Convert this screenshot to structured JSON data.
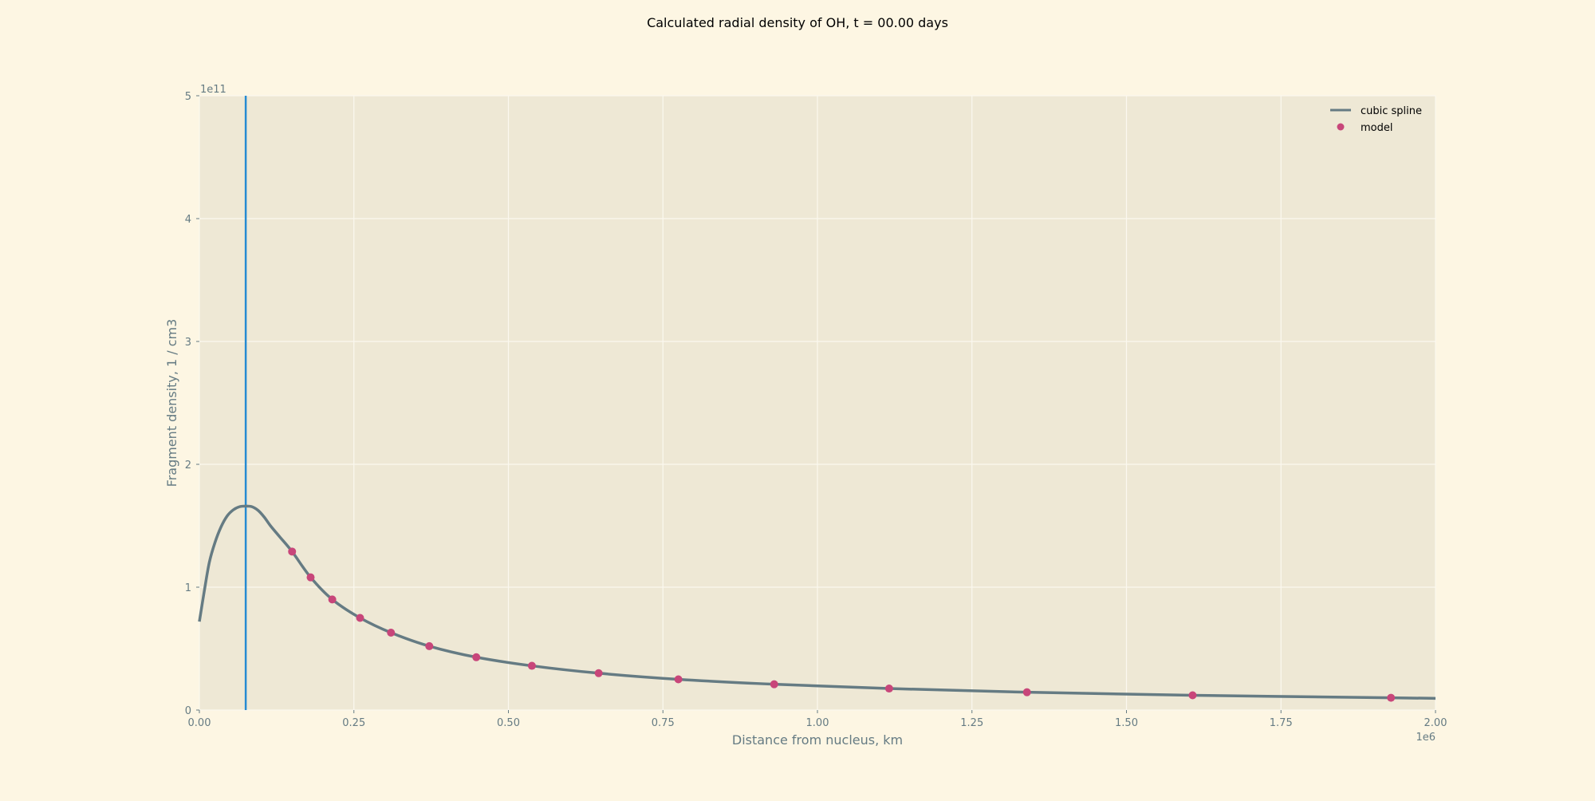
{
  "chart_data": {
    "type": "line",
    "title": "Calculated radial density of OH, t = 00.00 days",
    "xlabel": "Distance from nucleus, km",
    "ylabel": "Fragment density, 1 / cm3",
    "x_offset_label": "1e6",
    "y_offset_label": "1e11",
    "xlim": [
      0,
      2.0
    ],
    "ylim": [
      0,
      5
    ],
    "x_ticks": [
      "0.00",
      "0.25",
      "0.50",
      "0.75",
      "1.00",
      "1.25",
      "1.50",
      "1.75",
      "2.00"
    ],
    "y_ticks": [
      "0",
      "1",
      "2",
      "3",
      "4",
      "5"
    ],
    "grid": true,
    "legend_position": "top-right",
    "vline_x": 0.075,
    "series": [
      {
        "name": "cubic spline",
        "kind": "line",
        "color": "#657b83",
        "x": [
          0.0,
          0.008,
          0.016,
          0.025,
          0.035,
          0.045,
          0.055,
          0.065,
          0.075,
          0.085,
          0.095,
          0.105,
          0.115,
          0.13,
          0.15,
          0.18,
          0.215,
          0.26,
          0.31,
          0.372,
          0.448,
          0.538,
          0.646,
          0.775,
          0.93,
          1.116,
          1.339,
          1.607,
          1.928,
          2.0
        ],
        "y": [
          0.72,
          0.97,
          1.2,
          1.36,
          1.49,
          1.58,
          1.63,
          1.655,
          1.66,
          1.655,
          1.625,
          1.57,
          1.5,
          1.41,
          1.29,
          1.08,
          0.9,
          0.75,
          0.63,
          0.52,
          0.43,
          0.36,
          0.3,
          0.25,
          0.21,
          0.175,
          0.145,
          0.12,
          0.1,
          0.095
        ]
      },
      {
        "name": "model",
        "kind": "scatter",
        "color": "#c8467a",
        "x": [
          0.15,
          0.18,
          0.215,
          0.26,
          0.31,
          0.372,
          0.448,
          0.538,
          0.646,
          0.775,
          0.93,
          1.116,
          1.339,
          1.607,
          1.928
        ],
        "y": [
          1.29,
          1.08,
          0.9,
          0.75,
          0.63,
          0.52,
          0.43,
          0.36,
          0.3,
          0.25,
          0.21,
          0.175,
          0.145,
          0.12,
          0.1
        ]
      }
    ],
    "colors": {
      "background": "#fdf6e3",
      "plot_background": "#eee8d5",
      "grid": "#fbf8ef",
      "axis_text": "#657b83",
      "vline": "#268bd2"
    }
  }
}
